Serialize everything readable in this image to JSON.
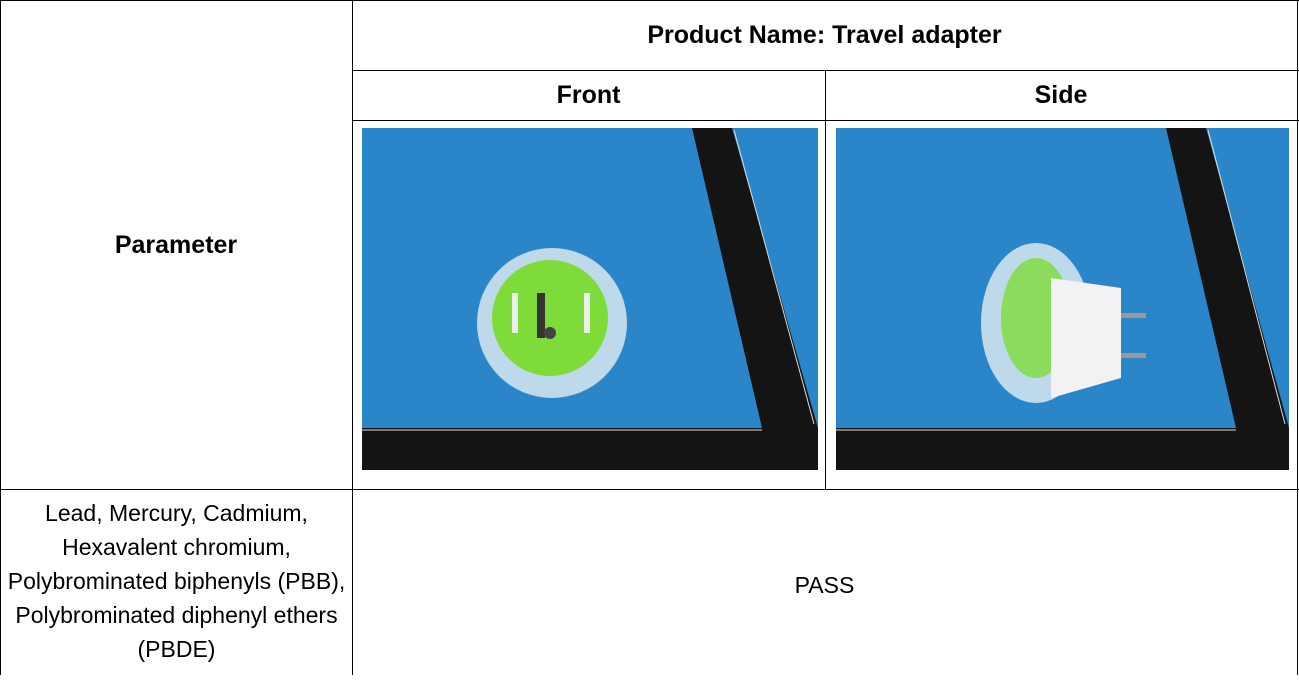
{
  "header": {
    "parameter": "Parameter",
    "title": "Product Name: Travel adapter",
    "columns": [
      "Front",
      "Side"
    ]
  },
  "rows": [
    {
      "parameter": "Lead, Mercury, Cadmium, Hexavalent chromium, Polybrominated biphenyls (PBB), Polybrominated diphenyl ethers (PBDE)",
      "result": "PASS"
    }
  ]
}
